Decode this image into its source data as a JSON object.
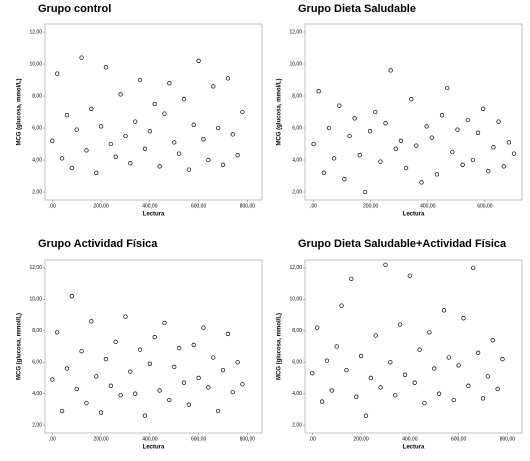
{
  "chart_data": [
    {
      "type": "scatter",
      "title": "Grupo control",
      "x_label": "Lectura",
      "y_label": "MCG (glucosa, mmol/L)",
      "color": "#000000",
      "x": [
        0,
        20,
        40,
        60,
        80,
        100,
        120,
        140,
        160,
        180,
        200,
        220,
        240,
        260,
        280,
        300,
        320,
        340,
        360,
        380,
        400,
        420,
        440,
        460,
        480,
        500,
        520,
        540,
        560,
        580,
        600,
        620,
        640,
        660,
        680,
        700,
        720,
        740,
        760,
        780
      ],
      "y": [
        5.2,
        9.4,
        4.1,
        6.8,
        3.5,
        5.9,
        10.4,
        4.6,
        7.2,
        3.2,
        6.1,
        9.8,
        5.0,
        4.2,
        8.1,
        5.5,
        3.8,
        6.4,
        9.0,
        4.7,
        5.8,
        7.5,
        3.6,
        6.9,
        8.8,
        5.1,
        4.4,
        7.8,
        3.4,
        6.2,
        10.2,
        5.3,
        4.0,
        8.6,
        6.0,
        3.7,
        9.1,
        5.6,
        4.3,
        7.0
      ],
      "xlim": [
        -30,
        860
      ],
      "ylim": [
        1.5,
        12.5
      ],
      "xticks": [
        {
          "value": 0,
          "label": ",00"
        },
        {
          "value": 200,
          "label": "200,00"
        },
        {
          "value": 400,
          "label": "400,00"
        },
        {
          "value": 600,
          "label": "600,00"
        },
        {
          "value": 800,
          "label": "800,00"
        }
      ],
      "yticks": [
        {
          "value": 2,
          "label": "2,00"
        },
        {
          "value": 4,
          "label": "4,00"
        },
        {
          "value": 6,
          "label": "6,00"
        },
        {
          "value": 8,
          "label": "8,00"
        },
        {
          "value": 10,
          "label": "10,00"
        },
        {
          "value": 12,
          "label": "12,00"
        }
      ]
    },
    {
      "type": "scatter",
      "title": "Grupo Dieta Saludable",
      "x_label": "Lectura",
      "y_label": "MCG (glucosa, mmol/L)",
      "color": "#000000",
      "x": [
        0,
        18,
        36,
        54,
        72,
        90,
        108,
        126,
        144,
        162,
        180,
        198,
        216,
        234,
        252,
        270,
        288,
        306,
        324,
        342,
        360,
        378,
        396,
        414,
        432,
        450,
        468,
        486,
        504,
        522,
        540,
        558,
        576,
        594,
        612,
        630,
        648,
        666,
        684,
        702
      ],
      "y": [
        5.0,
        8.3,
        3.2,
        6.0,
        4.1,
        7.4,
        2.8,
        5.5,
        6.6,
        4.3,
        2.0,
        5.8,
        7.0,
        3.9,
        6.3,
        9.6,
        4.7,
        5.2,
        3.5,
        7.8,
        4.9,
        2.6,
        6.1,
        5.4,
        3.1,
        6.8,
        8.5,
        4.5,
        5.9,
        3.7,
        6.5,
        4.0,
        5.7,
        7.2,
        3.3,
        4.8,
        6.4,
        3.6,
        5.1,
        4.4
      ],
      "xlim": [
        -30,
        730
      ],
      "ylim": [
        1.5,
        12.5
      ],
      "xticks": [
        {
          "value": 0,
          "label": ",00"
        },
        {
          "value": 200,
          "label": "200,00"
        },
        {
          "value": 400,
          "label": "400,00"
        },
        {
          "value": 600,
          "label": "600,00"
        }
      ],
      "yticks": [
        {
          "value": 2,
          "label": "2,00"
        },
        {
          "value": 4,
          "label": "4,00"
        },
        {
          "value": 6,
          "label": "6,00"
        },
        {
          "value": 8,
          "label": "8,00"
        },
        {
          "value": 10,
          "label": "10,00"
        },
        {
          "value": 12,
          "label": "12,00"
        }
      ]
    },
    {
      "type": "scatter",
      "title": "Grupo Actividad Física",
      "x_label": "Lectura",
      "y_label": "MCG (glucosa, mmol/L)",
      "color": "#000000",
      "x": [
        0,
        20,
        40,
        60,
        80,
        100,
        120,
        140,
        160,
        180,
        200,
        220,
        240,
        260,
        280,
        300,
        320,
        340,
        360,
        380,
        400,
        420,
        440,
        460,
        480,
        500,
        520,
        540,
        560,
        580,
        600,
        620,
        640,
        660,
        680,
        700,
        720,
        740,
        760,
        780
      ],
      "y": [
        4.9,
        7.9,
        2.9,
        5.6,
        10.2,
        4.3,
        6.7,
        3.4,
        8.6,
        5.1,
        2.8,
        6.2,
        4.5,
        7.3,
        3.9,
        8.9,
        5.4,
        4.0,
        6.8,
        2.6,
        5.9,
        7.6,
        4.2,
        8.5,
        3.6,
        5.7,
        6.9,
        4.7,
        3.3,
        7.1,
        5.0,
        8.2,
        4.4,
        6.3,
        2.9,
        5.5,
        7.8,
        4.1,
        6.0,
        4.6
      ],
      "xlim": [
        -30,
        860
      ],
      "ylim": [
        1.5,
        12.5
      ],
      "xticks": [
        {
          "value": 0,
          "label": ",00"
        },
        {
          "value": 200,
          "label": "200,00"
        },
        {
          "value": 400,
          "label": "400,00"
        },
        {
          "value": 600,
          "label": "600,00"
        },
        {
          "value": 800,
          "label": "800,00"
        }
      ],
      "yticks": [
        {
          "value": 2,
          "label": "2,00"
        },
        {
          "value": 4,
          "label": "4,00"
        },
        {
          "value": 6,
          "label": "6,00"
        },
        {
          "value": 8,
          "label": "8,00"
        },
        {
          "value": 10,
          "label": "10,00"
        },
        {
          "value": 12,
          "label": "12,00"
        }
      ]
    },
    {
      "type": "scatter",
      "title": "Grupo Dieta Saludable+Actividad Física",
      "x_label": "Lectura",
      "y_label": "MCG (glucosa, mmol/L)",
      "color": "#000000",
      "x": [
        0,
        20,
        40,
        60,
        80,
        100,
        120,
        140,
        160,
        180,
        200,
        220,
        240,
        260,
        280,
        300,
        320,
        340,
        360,
        380,
        400,
        420,
        440,
        460,
        480,
        500,
        520,
        540,
        560,
        580,
        600,
        620,
        640,
        660,
        680,
        700,
        720,
        740,
        760,
        780
      ],
      "y": [
        5.3,
        8.2,
        3.5,
        6.1,
        4.2,
        7.0,
        9.6,
        5.5,
        11.3,
        3.8,
        6.4,
        2.6,
        5.0,
        7.7,
        4.4,
        12.2,
        6.0,
        3.9,
        8.4,
        5.2,
        11.5,
        4.7,
        6.8,
        3.4,
        7.9,
        5.6,
        4.0,
        9.3,
        6.3,
        3.6,
        5.8,
        8.8,
        4.5,
        12.0,
        6.6,
        3.7,
        5.1,
        7.4,
        4.3,
        6.2
      ],
      "xlim": [
        -30,
        860
      ],
      "ylim": [
        1.5,
        12.5
      ],
      "xticks": [
        {
          "value": 0,
          "label": ",00"
        },
        {
          "value": 200,
          "label": "200,00"
        },
        {
          "value": 400,
          "label": "400,00"
        },
        {
          "value": 600,
          "label": "600,00"
        },
        {
          "value": 800,
          "label": "800,00"
        }
      ],
      "yticks": [
        {
          "value": 2,
          "label": "2,00"
        },
        {
          "value": 4,
          "label": "4,00"
        },
        {
          "value": 6,
          "label": "6,00"
        },
        {
          "value": 8,
          "label": "8,00"
        },
        {
          "value": 10,
          "label": "10,00"
        },
        {
          "value": 12,
          "label": "12,00"
        }
      ]
    }
  ]
}
